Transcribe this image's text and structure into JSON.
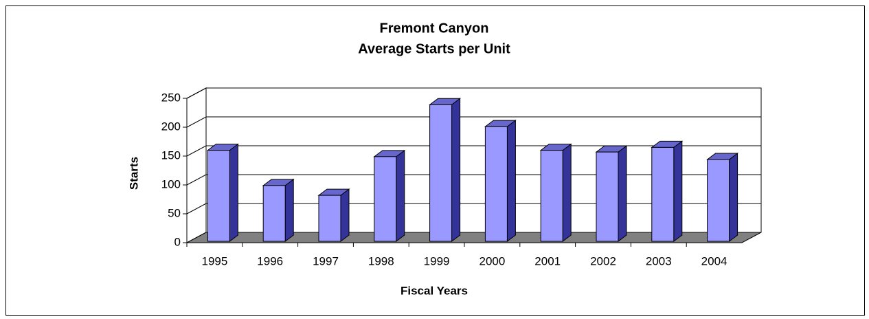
{
  "chart_data": {
    "type": "bar3d",
    "title": "Fremont Canyon",
    "subtitle": "Average Starts per Unit",
    "x_label": "Fiscal Years",
    "y_label": "Starts",
    "categories": [
      "1995",
      "1996",
      "1997",
      "1998",
      "1999",
      "2000",
      "2001",
      "2002",
      "2003",
      "2004"
    ],
    "values": [
      160,
      99,
      82,
      149,
      239,
      201,
      160,
      157,
      165,
      144
    ],
    "color": "#9999ff",
    "ylim": [
      0,
      250
    ],
    "yticks": [
      0,
      50,
      100,
      150,
      200,
      250
    ],
    "grid": true
  }
}
